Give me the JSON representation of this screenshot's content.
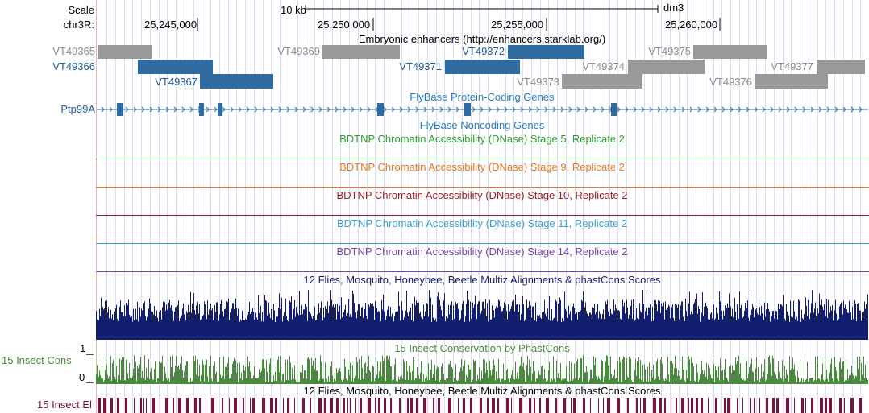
{
  "ruler": {
    "scale_label": "Scale",
    "chrom_label": "chr3R:",
    "scale_bar_label": "10 kb",
    "assembly": "dm3",
    "positions": [
      "25,245,000",
      "25,250,000",
      "25,255,000",
      "25,260,000"
    ]
  },
  "tracks": {
    "enhancers": {
      "title": "Embryonic enhancers (http://enhancers.starklab.org/)",
      "items": [
        {
          "name": "VT49365",
          "highlight": false
        },
        {
          "name": "VT49366",
          "highlight": true
        },
        {
          "name": "VT49367",
          "highlight": true
        },
        {
          "name": "VT49369",
          "highlight": false
        },
        {
          "name": "VT49371",
          "highlight": true
        },
        {
          "name": "VT49372",
          "highlight": true
        },
        {
          "name": "VT49373",
          "highlight": false
        },
        {
          "name": "VT49374",
          "highlight": false
        },
        {
          "name": "VT49375",
          "highlight": false
        },
        {
          "name": "VT49376",
          "highlight": false
        },
        {
          "name": "VT49377",
          "highlight": false
        }
      ]
    },
    "protein_coding": {
      "title": "FlyBase Protein-Coding Genes",
      "gene": "Ptp99A"
    },
    "noncoding": {
      "title": "FlyBase Noncoding Genes"
    },
    "dnase": [
      {
        "title": "BDTNP Chromatin Accessibility (DNase) Stage 5, Replicate 2",
        "color": "#2ca02c"
      },
      {
        "title": "BDTNP Chromatin Accessibility (DNase) Stage 9, Replicate 2",
        "color": "#e8761e"
      },
      {
        "title": "BDTNP Chromatin Accessibility (DNase) Stage 10, Replicate 2",
        "color": "#a01e28"
      },
      {
        "title": "BDTNP Chromatin Accessibility (DNase) Stage 11, Replicate 2",
        "color": "#3ca0d2"
      },
      {
        "title": "BDTNP Chromatin Accessibility (DNase) Stage 14, Replicate 2",
        "color": "#7846aa"
      }
    ],
    "multiz": {
      "title": "12 Flies, Mosquito, Honeybee, Beetle Multiz Alignments & phastCons Scores",
      "color": "#141e6e"
    },
    "cons15": {
      "title": "15 Insect Conservation by PhastCons",
      "side_label": "15 Insect Cons",
      "y_max": "1",
      "y_min": "0",
      "color": "#4a8a3e"
    },
    "elements": {
      "title": "12 Flies, Mosquito, Honeybee, Beetle Multiz Alignments & phastCons Scores",
      "side_label": "15 Insect El",
      "color": "#78143c"
    }
  },
  "colors": {
    "highlight_text": "#1f5a9a",
    "highlight_box": "#2f6aa0",
    "gray_text": "#8c8c8c",
    "gray_box": "#999999",
    "grid": "#dcdcf4",
    "gutter": "#f0b4b4"
  }
}
